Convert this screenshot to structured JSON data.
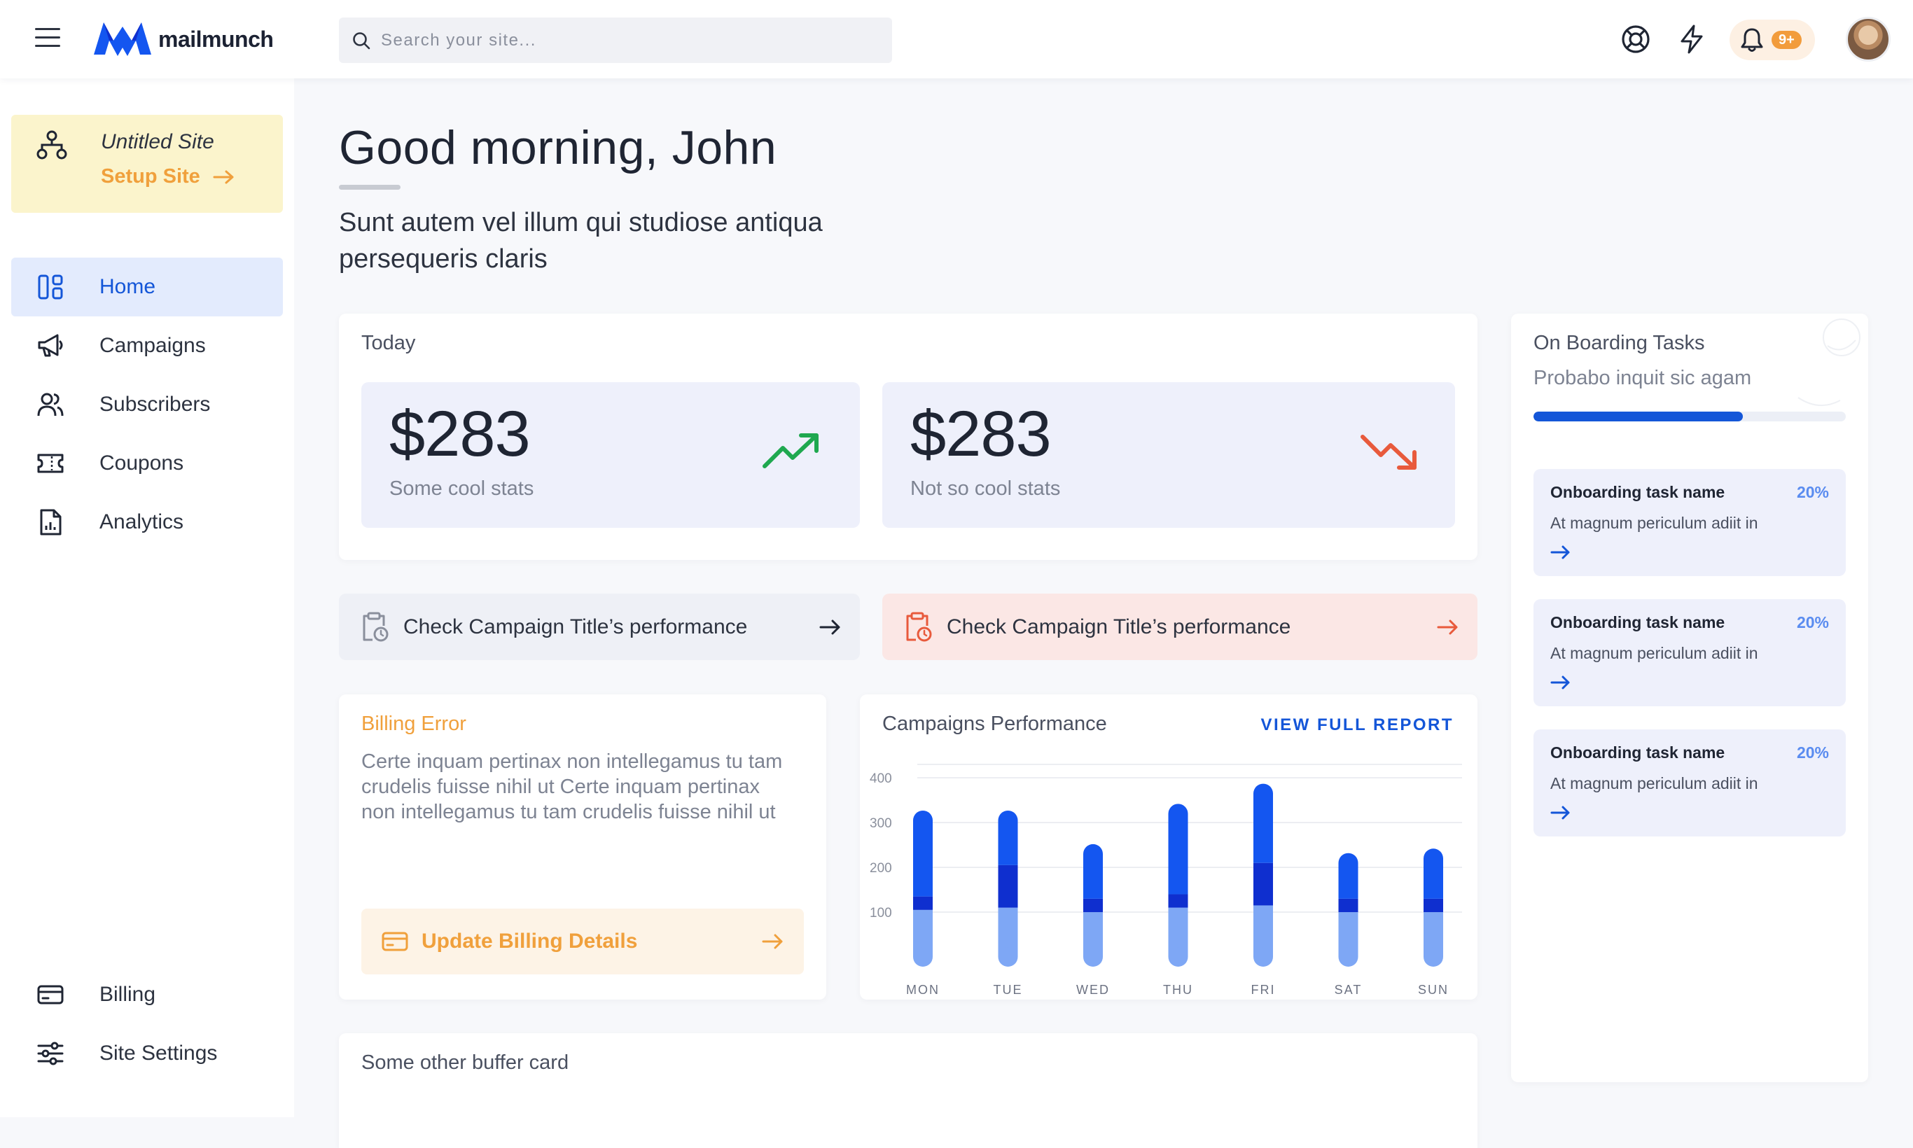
{
  "app": {
    "brand": "mailmunch"
  },
  "search": {
    "placeholder": "Search your site..."
  },
  "header": {
    "notification_count": "9+"
  },
  "site_card": {
    "name": "Untitled Site",
    "setup_label": "Setup Site"
  },
  "sidebar": {
    "items": [
      {
        "label": "Home",
        "icon": "home-grid-icon",
        "active": true
      },
      {
        "label": "Campaigns",
        "icon": "megaphone-icon"
      },
      {
        "label": "Subscribers",
        "icon": "users-icon"
      },
      {
        "label": "Coupons",
        "icon": "ticket-icon"
      },
      {
        "label": "Analytics",
        "icon": "report-icon"
      }
    ],
    "bottom_items": [
      {
        "label": "Billing",
        "icon": "credit-card-icon"
      },
      {
        "label": "Site Settings",
        "icon": "sliders-icon"
      }
    ]
  },
  "main": {
    "greeting": "Good morning, John",
    "subtitle": "Sunt autem vel illum qui studiose antiqua persequeris claris"
  },
  "today": {
    "title": "Today",
    "stats": [
      {
        "value": "$283",
        "label": "Some cool stats",
        "trend": "up",
        "color": "#1fa84f"
      },
      {
        "value": "$283",
        "label": "Not so cool stats",
        "trend": "down",
        "color": "#e85a3c"
      }
    ]
  },
  "actions": [
    {
      "label": "Check Campaign Title’s performance",
      "style": "neutral"
    },
    {
      "label": "Check Campaign Title’s performance",
      "style": "alert"
    }
  ],
  "billing": {
    "title": "Billing Error",
    "text": "Certe inquam pertinax non intellegamus tu tam crudelis fuisse nihil ut Certe inquam pertinax non intellegamus tu tam crudelis fuisse nihil ut",
    "button_label": "Update Billing Details"
  },
  "performance": {
    "title": "Campaigns Performance",
    "link_label": "VIEW FULL REPORT"
  },
  "chart_data": {
    "type": "bar",
    "stacked": true,
    "categories": [
      "MON",
      "TUE",
      "WED",
      "THU",
      "FRI",
      "SAT",
      "SUN"
    ],
    "yticks": [
      100,
      200,
      300,
      400
    ],
    "ylim": [
      0,
      430
    ],
    "grid": true,
    "series": [
      {
        "values": [
          105,
          110,
          100,
          110,
          115,
          100,
          100
        ],
        "color": "#7ea7f5"
      },
      {
        "values": [
          30,
          95,
          30,
          30,
          95,
          30,
          30
        ],
        "color": "#0f2fcf"
      },
      {
        "values": [
          170,
          100,
          100,
          180,
          155,
          80,
          90
        ],
        "color": "#1456f0"
      }
    ]
  },
  "onboarding": {
    "title": "On Boarding Tasks",
    "subtitle": "Probabo inquit sic agam",
    "progress": 0.67,
    "tasks": [
      {
        "name": "Onboarding task name",
        "percent": "20%",
        "desc": "At magnum periculum adiit in"
      },
      {
        "name": "Onboarding task name",
        "percent": "20%",
        "desc": "At magnum periculum adiit in"
      },
      {
        "name": "Onboarding task name",
        "percent": "20%",
        "desc": "At magnum periculum adiit in"
      }
    ]
  },
  "buffer": {
    "title": "Some other buffer card"
  },
  "colors": {
    "accent": "#1456d8",
    "warning": "#f0a03c",
    "danger": "#e85a3c",
    "success": "#1fa84f"
  }
}
